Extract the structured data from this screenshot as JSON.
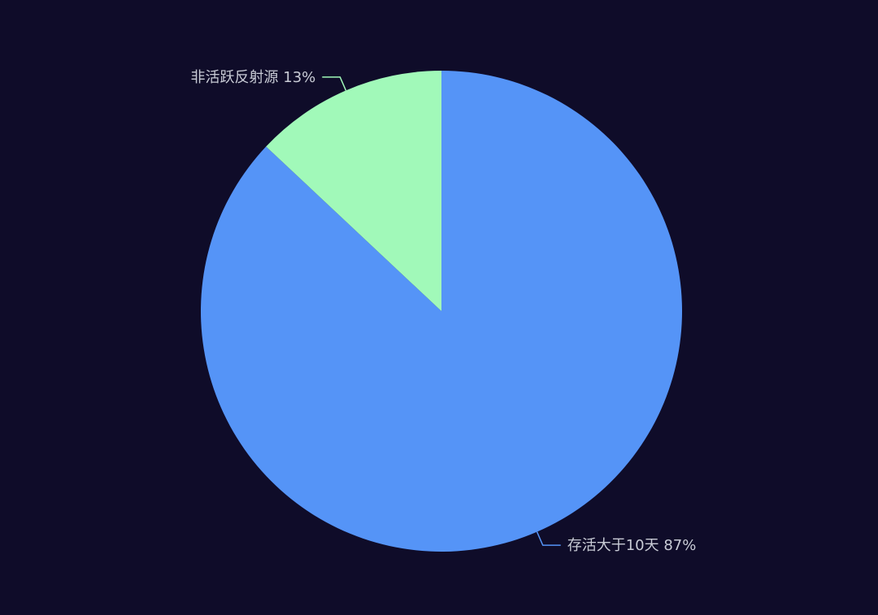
{
  "colors": {
    "background": "#0f0c29",
    "label_text": "#c9ccd6"
  },
  "chart_data": {
    "type": "pie",
    "title": "",
    "slices": [
      {
        "label": "存活大于10天",
        "value": 87,
        "percent_text": "87%",
        "color": "#5594f7"
      },
      {
        "label": "非活跃反射源",
        "value": 13,
        "percent_text": "13%",
        "color": "#a1f9b9"
      }
    ],
    "start_angle_deg": 90,
    "direction": "clockwise",
    "legend": "none"
  }
}
